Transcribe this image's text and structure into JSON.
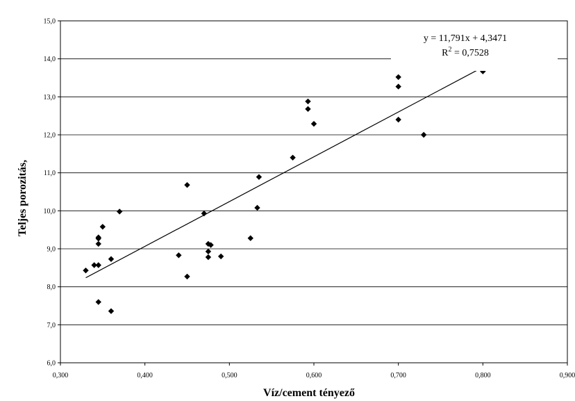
{
  "chart_data": {
    "type": "scatter",
    "xlabel": "Víz/cement tényező",
    "ylabel": "Teljes porozitás,",
    "xlim": [
      0.3,
      0.9
    ],
    "ylim": [
      6.0,
      15.0
    ],
    "x_tick_labels": [
      "0,300",
      "0,400",
      "0,500",
      "0,600",
      "0,700",
      "0,800",
      "0,900"
    ],
    "y_tick_labels": [
      "6,0",
      "7,0",
      "8,0",
      "9,0",
      "10,0",
      "11,0",
      "12,0",
      "13,0",
      "14,0",
      "15,0"
    ],
    "grid": "horizontal",
    "legend": "none",
    "series": [
      {
        "marker": "diamond",
        "color": "#000000",
        "points": [
          [
            0.33,
            8.43
          ],
          [
            0.34,
            8.57
          ],
          [
            0.345,
            8.57
          ],
          [
            0.345,
            9.13
          ],
          [
            0.345,
            9.27
          ],
          [
            0.345,
            9.3
          ],
          [
            0.35,
            9.58
          ],
          [
            0.345,
            7.6
          ],
          [
            0.36,
            8.73
          ],
          [
            0.36,
            7.36
          ],
          [
            0.37,
            9.98
          ],
          [
            0.44,
            8.83
          ],
          [
            0.45,
            10.68
          ],
          [
            0.45,
            8.27
          ],
          [
            0.47,
            9.93
          ],
          [
            0.475,
            9.13
          ],
          [
            0.478,
            9.1
          ],
          [
            0.475,
            8.93
          ],
          [
            0.475,
            8.78
          ],
          [
            0.49,
            8.8
          ],
          [
            0.525,
            9.28
          ],
          [
            0.533,
            10.08
          ],
          [
            0.535,
            10.89
          ],
          [
            0.575,
            11.4
          ],
          [
            0.593,
            12.88
          ],
          [
            0.593,
            12.68
          ],
          [
            0.6,
            12.29
          ],
          [
            0.7,
            13.52
          ],
          [
            0.7,
            13.27
          ],
          [
            0.7,
            12.4
          ],
          [
            0.73,
            12.0
          ],
          [
            0.8,
            13.67
          ]
        ]
      }
    ],
    "trendline": {
      "type": "linear",
      "slope": 11.791,
      "intercept": 4.3471,
      "x_range": [
        0.33,
        0.8
      ],
      "equation_text": "y = 11,791x + 4,3471",
      "r2_prefix": "R",
      "r2_sup": "2",
      "r2_value": " = 0,7528"
    }
  }
}
